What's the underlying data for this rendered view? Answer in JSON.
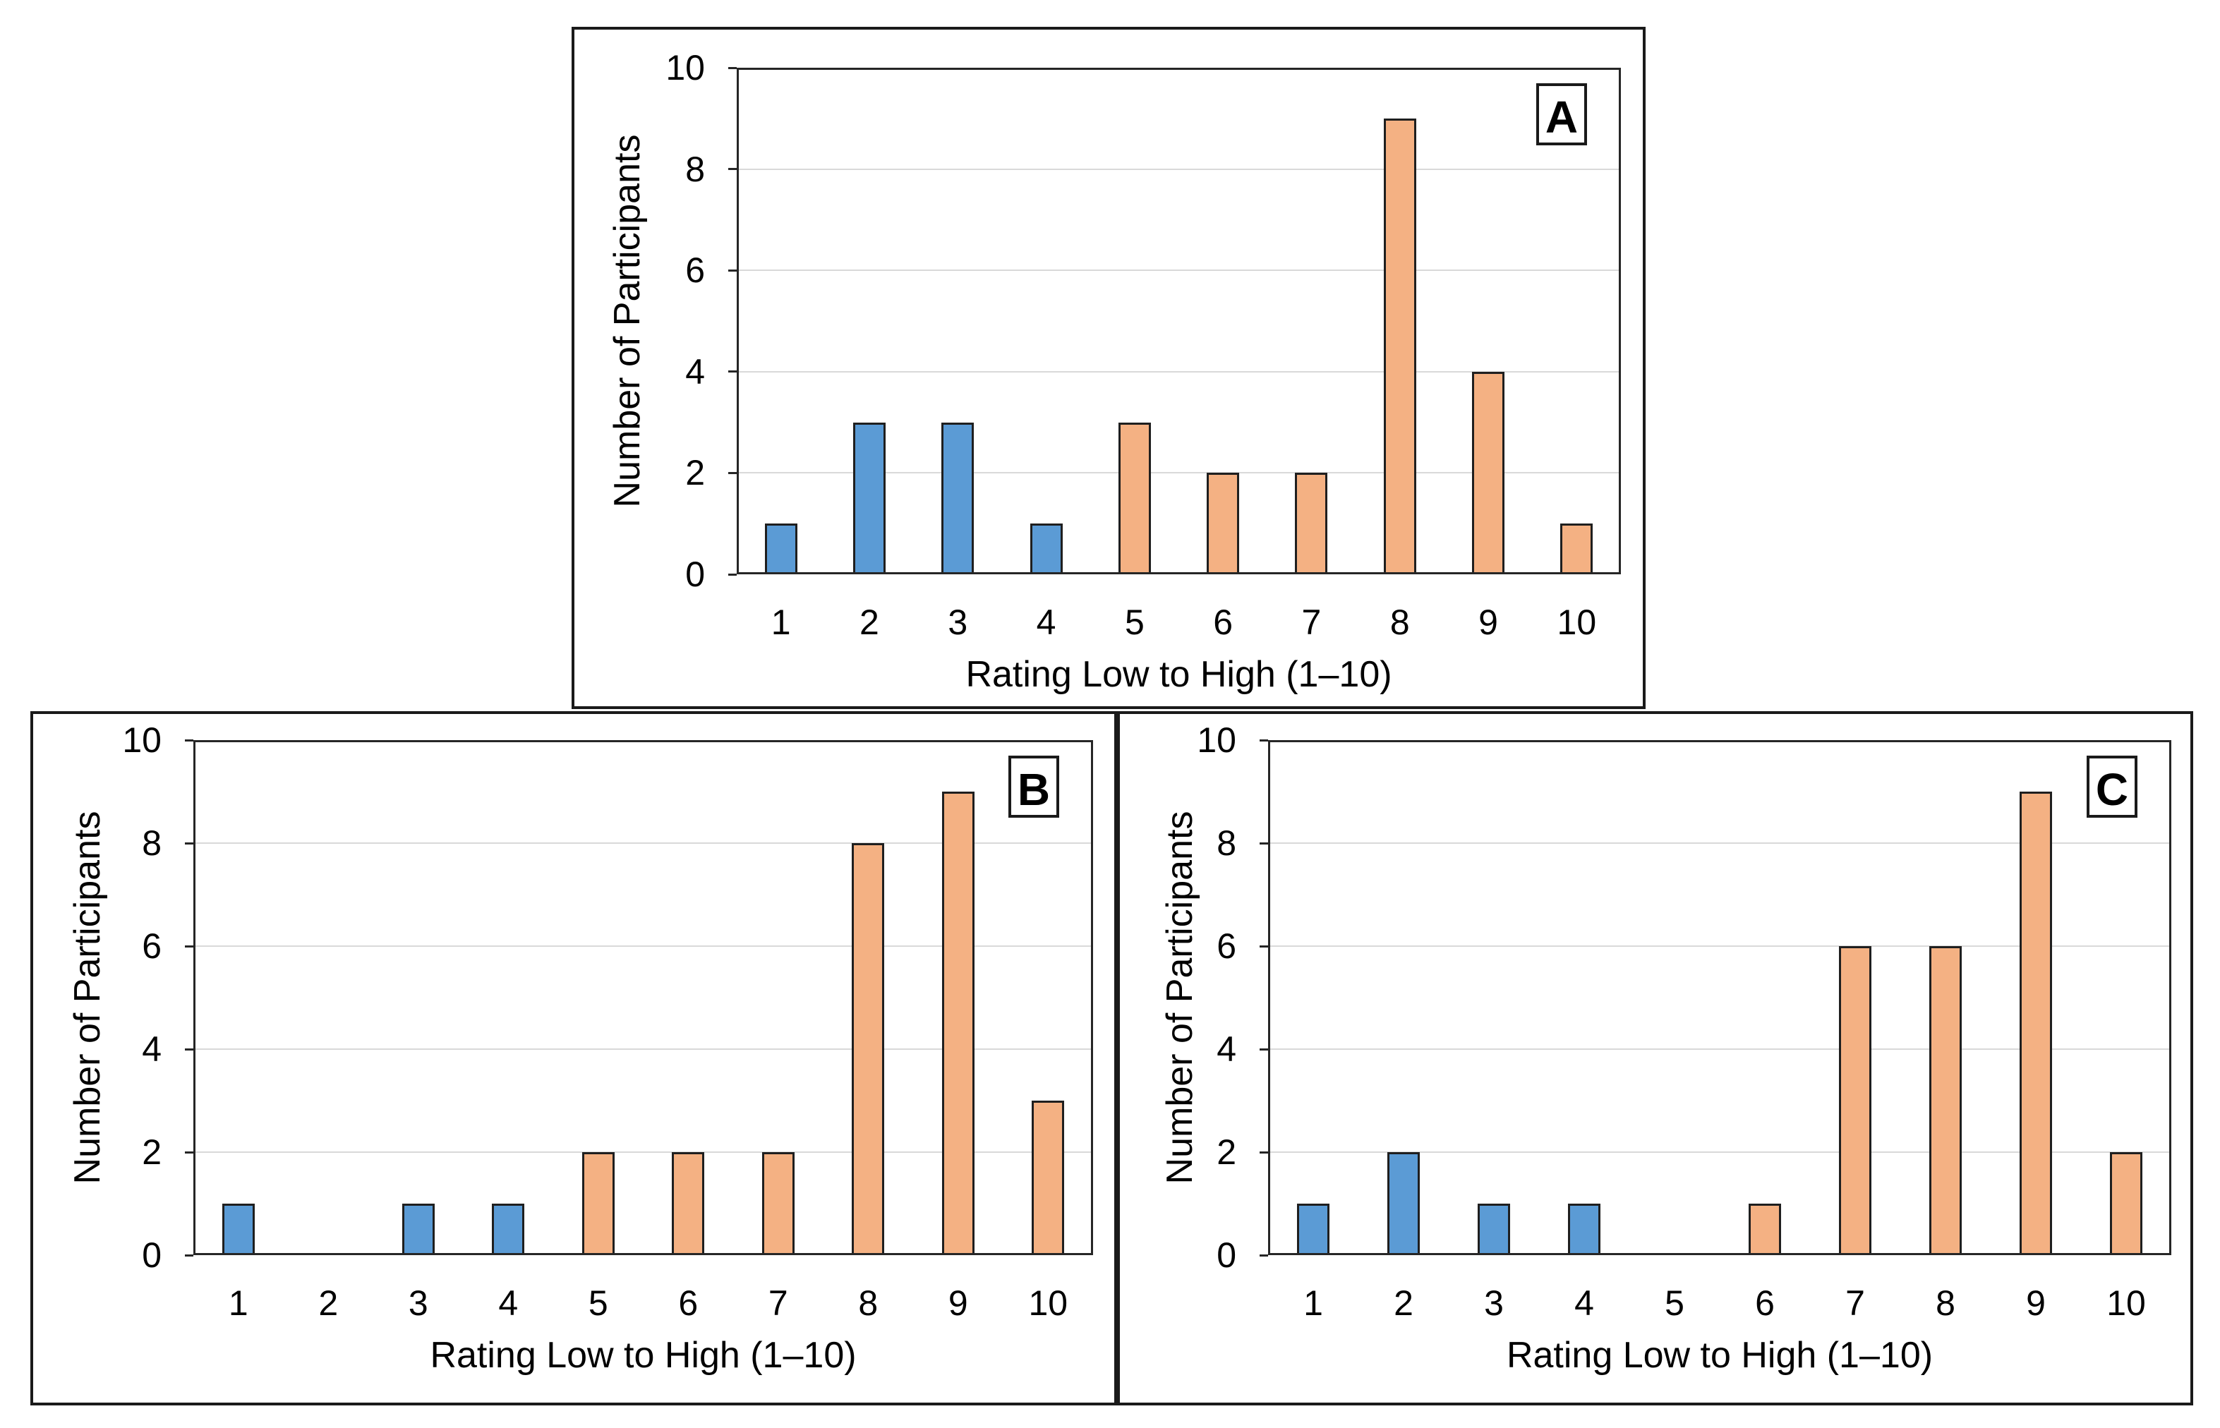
{
  "colors": {
    "blue": "#5b9bd5",
    "orange": "#f4b183",
    "bar_border": "#1f1f1f",
    "frame": "#262626",
    "gridline": "#d9d9d9",
    "panel_border": "#1a1a1a",
    "text": "#000000"
  },
  "chart_data": [
    {
      "type": "bar",
      "panel_label": "A",
      "title": "",
      "categories": [
        "1",
        "2",
        "3",
        "4",
        "5",
        "6",
        "7",
        "8",
        "9",
        "10"
      ],
      "values": [
        1,
        3,
        3,
        1,
        3,
        2,
        2,
        9,
        4,
        1
      ],
      "bar_colors": [
        "blue",
        "blue",
        "blue",
        "blue",
        "orange",
        "orange",
        "orange",
        "orange",
        "orange",
        "orange"
      ],
      "xlabel": "Rating Low to High (1–10)",
      "ylabel": "Number of Participants",
      "ylim": [
        0,
        10
      ],
      "yticks": [
        0,
        2,
        4,
        6,
        8,
        10
      ],
      "grid": "horizontal",
      "legend": "none"
    },
    {
      "type": "bar",
      "panel_label": "B",
      "title": "",
      "categories": [
        "1",
        "2",
        "3",
        "4",
        "5",
        "6",
        "7",
        "8",
        "9",
        "10"
      ],
      "values": [
        1,
        0,
        1,
        1,
        2,
        2,
        2,
        8,
        9,
        3
      ],
      "bar_colors": [
        "blue",
        "blue",
        "blue",
        "blue",
        "orange",
        "orange",
        "orange",
        "orange",
        "orange",
        "orange"
      ],
      "xlabel": "Rating Low to High (1–10)",
      "ylabel": "Number of Participants",
      "ylim": [
        0,
        10
      ],
      "yticks": [
        0,
        2,
        4,
        6,
        8,
        10
      ],
      "grid": "horizontal",
      "legend": "none"
    },
    {
      "type": "bar",
      "panel_label": "C",
      "title": "",
      "categories": [
        "1",
        "2",
        "3",
        "4",
        "5",
        "6",
        "7",
        "8",
        "9",
        "10"
      ],
      "values": [
        1,
        2,
        1,
        1,
        0,
        1,
        6,
        6,
        9,
        2
      ],
      "bar_colors": [
        "blue",
        "blue",
        "blue",
        "blue",
        "orange",
        "orange",
        "orange",
        "orange",
        "orange",
        "orange"
      ],
      "xlabel": "Rating Low to High (1–10)",
      "ylabel": "Number of Participants",
      "ylim": [
        0,
        10
      ],
      "yticks": [
        0,
        2,
        4,
        6,
        8,
        10
      ],
      "grid": "horizontal",
      "legend": "none"
    }
  ]
}
